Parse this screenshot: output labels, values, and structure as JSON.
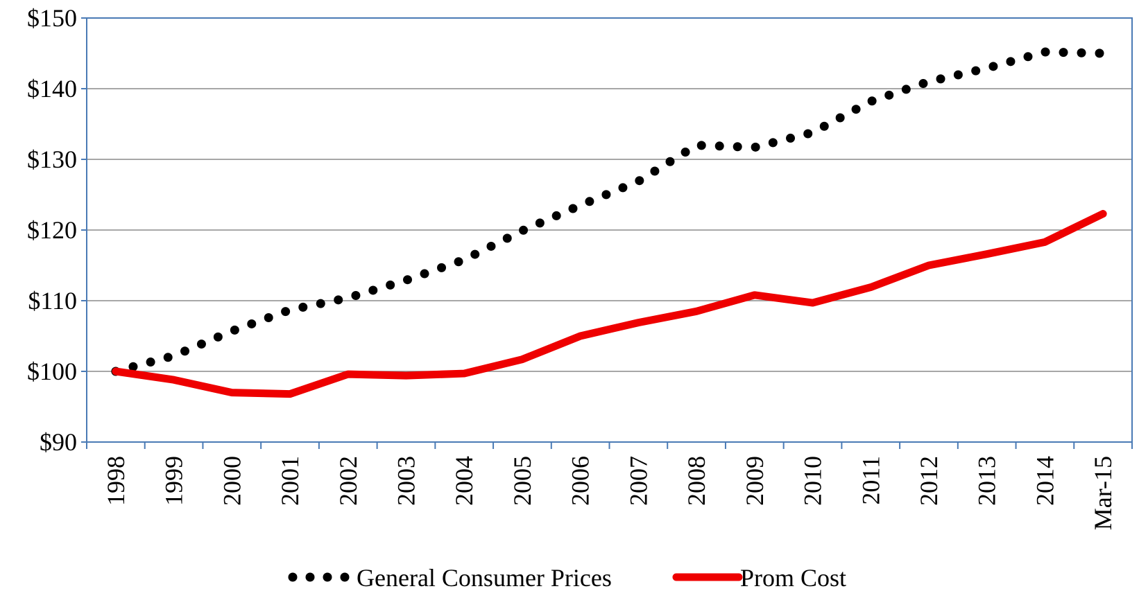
{
  "chart_data": {
    "type": "line",
    "title": "",
    "xlabel": "",
    "ylabel": "",
    "categories": [
      "1998",
      "1999",
      "2000",
      "2001",
      "2002",
      "2003",
      "2004",
      "2005",
      "2006",
      "2007",
      "2008",
      "2009",
      "2010",
      "2011",
      "2012",
      "2013",
      "2014",
      "Mar-15"
    ],
    "ylim": [
      90,
      150
    ],
    "yticks": [
      90,
      100,
      110,
      120,
      130,
      140,
      150
    ],
    "ytick_labels": [
      "$90",
      "$100",
      "$110",
      "$120",
      "$130",
      "$140",
      "$150"
    ],
    "grid": "horizontal",
    "legend_position": "bottom",
    "series": [
      {
        "name": "General Consumer Prices",
        "style": "dotted",
        "color": "#000000",
        "values": [
          100,
          102.2,
          105.7,
          108.7,
          110.4,
          112.9,
          115.8,
          119.9,
          123.5,
          126.9,
          132.0,
          131.7,
          133.8,
          138.2,
          141.0,
          142.9,
          145.2,
          145.0
        ]
      },
      {
        "name": "Prom Cost",
        "style": "solid",
        "color": "#ee0000",
        "values": [
          100,
          98.8,
          97.0,
          96.8,
          99.6,
          99.4,
          99.7,
          101.7,
          105.0,
          106.9,
          108.5,
          110.8,
          109.7,
          111.9,
          115.0,
          116.6,
          118.3,
          122.3
        ]
      }
    ]
  }
}
